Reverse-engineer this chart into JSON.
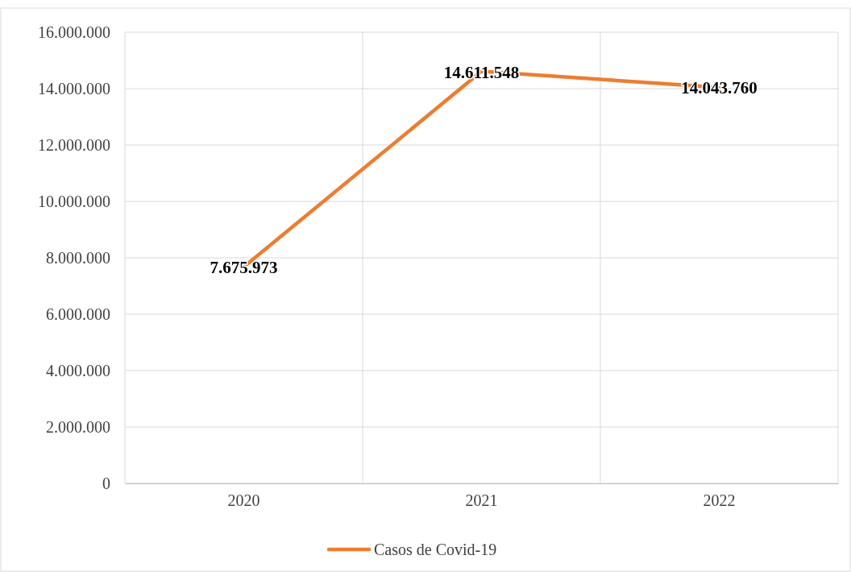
{
  "chart_data": {
    "type": "line",
    "categories": [
      "2020",
      "2021",
      "2022"
    ],
    "series": [
      {
        "name": "Casos de Covid-19",
        "color": "#ed7d31",
        "values": [
          7675973,
          14611548,
          14043760
        ],
        "value_labels": [
          "7.675.973",
          "14.611.548",
          "14.043.760"
        ]
      }
    ],
    "ylim": [
      0,
      16000000
    ],
    "yticks": [
      {
        "value": 0,
        "label": "0"
      },
      {
        "value": 2000000,
        "label": "2.000.000"
      },
      {
        "value": 4000000,
        "label": "4.000.000"
      },
      {
        "value": 6000000,
        "label": "6.000.000"
      },
      {
        "value": 8000000,
        "label": "8.000.000"
      },
      {
        "value": 10000000,
        "label": "10.000.000"
      },
      {
        "value": 12000000,
        "label": "12.000.000"
      },
      {
        "value": 14000000,
        "label": "14.000.000"
      },
      {
        "value": 16000000,
        "label": "16.000.000"
      }
    ],
    "grid": true,
    "legend": "bottom",
    "marker": "none",
    "line_style": "solid"
  }
}
